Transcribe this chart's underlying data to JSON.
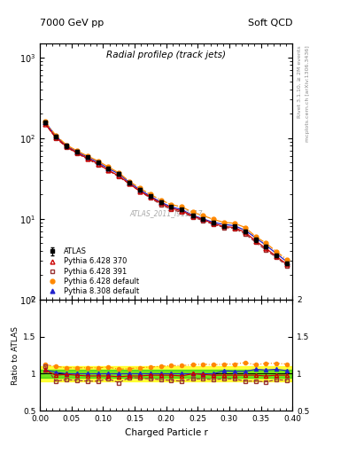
{
  "title_main": "Radial profileρ (track jets)",
  "header_left": "7000 GeV pp",
  "header_right": "Soft QCD",
  "watermark": "ATLAS_2011_I919017",
  "rivet_label": "Rivet 3.1.10, ≥ 2M events",
  "mcplots_label": "mcplots.cern.ch [arXiv:1306.3436]",
  "xlabel": "Charged Particle r",
  "ylabel_ratio": "Ratio to ATLAS",
  "x": [
    0.008,
    0.025,
    0.042,
    0.058,
    0.075,
    0.092,
    0.108,
    0.125,
    0.142,
    0.158,
    0.175,
    0.192,
    0.208,
    0.225,
    0.242,
    0.258,
    0.275,
    0.292,
    0.308,
    0.325,
    0.342,
    0.358,
    0.375,
    0.392
  ],
  "atlas_y": [
    155,
    105,
    80,
    68,
    58,
    50,
    42,
    36,
    28,
    23,
    19,
    16,
    14,
    13,
    11,
    10,
    9.0,
    8.2,
    8.0,
    7.0,
    5.5,
    4.5,
    3.5,
    2.8
  ],
  "atlas_yerr": [
    8,
    5,
    4,
    3,
    2.5,
    2,
    2,
    1.5,
    1.2,
    1,
    0.8,
    0.7,
    0.6,
    0.5,
    0.5,
    0.4,
    0.4,
    0.4,
    0.4,
    0.3,
    0.3,
    0.25,
    0.2,
    0.15
  ],
  "py6_370_y": [
    150,
    102,
    78,
    66,
    56,
    48,
    40,
    34,
    27,
    22,
    18.5,
    15.5,
    13.5,
    12.5,
    10.8,
    9.8,
    8.7,
    8.0,
    7.8,
    6.8,
    5.3,
    4.3,
    3.4,
    2.7
  ],
  "py6_391_y": [
    152,
    100,
    77,
    65,
    55,
    47,
    40,
    33,
    27,
    22,
    18,
    15,
    13,
    12,
    10.5,
    9.5,
    8.5,
    7.8,
    7.6,
    6.5,
    5.1,
    4.1,
    3.3,
    2.6
  ],
  "py6_def_y": [
    160,
    108,
    82,
    70,
    60,
    52,
    44,
    37,
    29,
    24,
    20,
    17,
    15,
    14,
    12,
    11,
    9.8,
    9.0,
    8.8,
    7.8,
    6.0,
    5.0,
    3.9,
    3.1
  ],
  "py8_def_y": [
    158,
    106,
    80,
    68,
    58,
    50,
    42,
    36,
    28,
    23,
    19,
    16,
    14,
    13,
    11,
    10,
    9.0,
    8.5,
    8.2,
    7.2,
    5.8,
    4.7,
    3.7,
    2.9
  ],
  "ratio_py6_370": [
    1.05,
    0.98,
    0.99,
    0.98,
    0.97,
    0.97,
    0.97,
    0.96,
    0.97,
    0.97,
    0.98,
    0.98,
    0.98,
    0.97,
    1.0,
    0.99,
    0.98,
    0.98,
    0.98,
    0.98,
    0.98,
    0.97,
    0.98,
    0.98
  ],
  "ratio_py6_391": [
    1.1,
    0.9,
    0.92,
    0.91,
    0.9,
    0.9,
    0.93,
    0.88,
    0.95,
    0.94,
    0.93,
    0.92,
    0.91,
    0.9,
    0.93,
    0.93,
    0.92,
    0.93,
    0.93,
    0.9,
    0.9,
    0.89,
    0.92,
    0.91
  ],
  "ratio_py6_def": [
    1.12,
    1.1,
    1.08,
    1.08,
    1.08,
    1.08,
    1.09,
    1.06,
    1.07,
    1.08,
    1.09,
    1.1,
    1.11,
    1.11,
    1.12,
    1.13,
    1.12,
    1.13,
    1.13,
    1.15,
    1.12,
    1.14,
    1.14,
    1.13
  ],
  "ratio_py8_def": [
    1.05,
    1.02,
    1.0,
    1.0,
    1.0,
    1.0,
    1.0,
    1.0,
    1.0,
    1.0,
    1.0,
    1.0,
    1.0,
    1.0,
    1.0,
    1.0,
    1.0,
    1.04,
    1.03,
    1.03,
    1.06,
    1.05,
    1.06,
    1.04
  ],
  "atlas_band_green": 0.05,
  "atlas_band_yellow": 0.1,
  "color_atlas": "#000000",
  "color_py6_370": "#cc0000",
  "color_py6_391": "#993333",
  "color_py6_def": "#ff8800",
  "color_py8_def": "#2222cc",
  "ylim_main_lo": 1.0,
  "ylim_main_hi": 1500,
  "ylim_ratio_lo": 0.5,
  "ylim_ratio_hi": 2.0,
  "xlim_lo": 0.0,
  "xlim_hi": 0.4
}
